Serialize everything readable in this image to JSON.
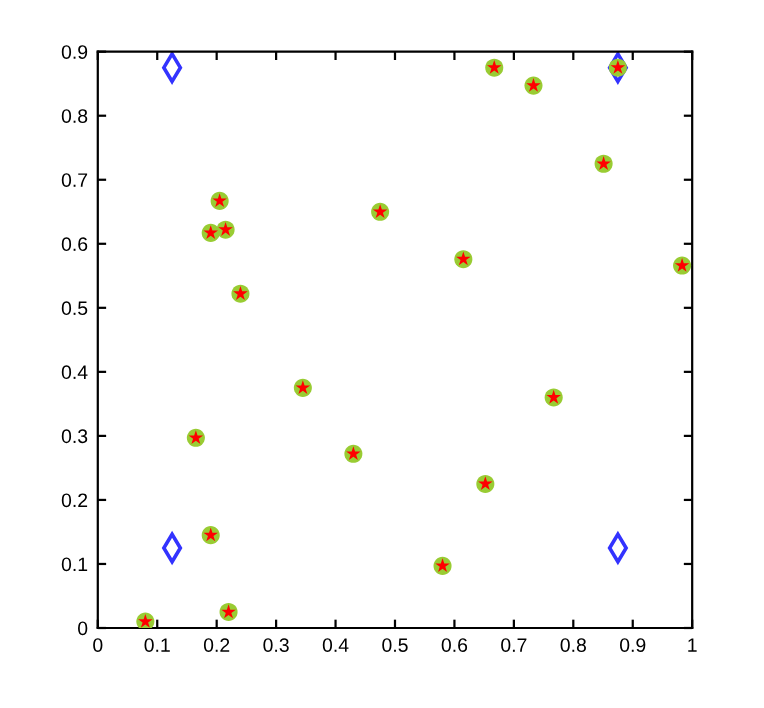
{
  "chart_data": {
    "type": "scatter",
    "x": [
      0.08,
      0.165,
      0.19,
      0.22,
      0.345,
      0.43,
      0.19,
      0.205,
      0.215,
      0.24,
      0.475,
      0.58,
      0.615,
      0.652,
      0.667,
      0.733,
      0.767,
      0.851,
      0.875,
      0.983,
      0.125,
      0.125,
      0.875,
      0.875
    ],
    "series": [
      {
        "color": "#99cc33",
        "marker": "circle",
        "values": [
          0.01,
          0.297,
          0.145,
          0.025,
          0.375,
          0.272,
          0.617,
          0.667,
          0.622,
          0.522,
          0.65,
          0.097,
          0.576,
          0.225,
          0.875,
          0.847,
          0.36,
          0.725,
          0.875,
          0.566,
          null,
          null,
          null,
          null
        ]
      },
      {
        "color": "#ff0000",
        "marker": "star",
        "values": [
          0.01,
          0.297,
          0.145,
          0.025,
          0.375,
          0.272,
          0.617,
          0.667,
          0.622,
          0.522,
          0.65,
          0.097,
          0.576,
          0.225,
          0.875,
          0.847,
          0.36,
          0.725,
          0.875,
          0.566,
          null,
          null,
          null,
          null
        ]
      },
      {
        "color": "#3333ff",
        "marker": "diamond",
        "values": [
          null,
          null,
          null,
          null,
          null,
          null,
          null,
          null,
          null,
          null,
          null,
          null,
          null,
          null,
          null,
          null,
          null,
          null,
          null,
          null,
          0.875,
          0.125,
          0.125,
          0.875
        ]
      }
    ],
    "xlim": [
      0,
      1
    ],
    "ylim": [
      0,
      0.9
    ],
    "xticks": [
      0,
      0.1,
      0.2,
      0.3,
      0.4,
      0.5,
      0.6,
      0.7,
      0.8,
      0.9,
      1
    ],
    "yticks": [
      0,
      0.1,
      0.2,
      0.3,
      0.4,
      0.5,
      0.6,
      0.7,
      0.8,
      0.9
    ],
    "grid": false,
    "legend": false
  }
}
